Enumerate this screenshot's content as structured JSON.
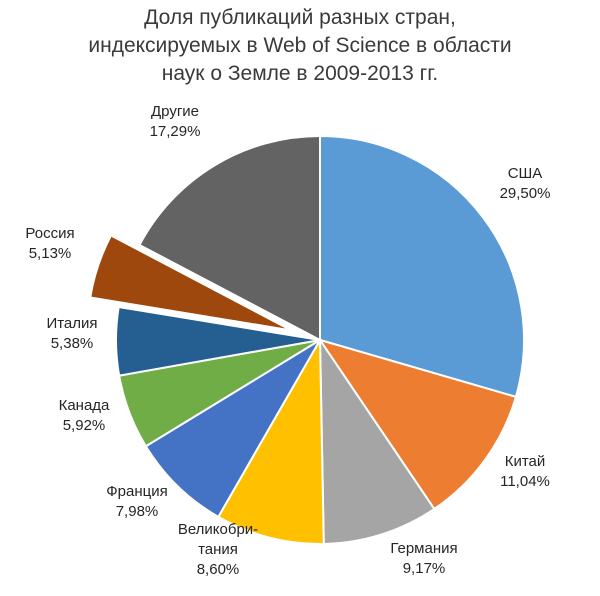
{
  "chart_data": {
    "type": "pie",
    "title_lines": [
      "Доля публикаций разных стран,",
      "индексируемых в Web of Science в области",
      "наук о Земле в 2009-2013 гг."
    ],
    "start_angle_deg": 0,
    "direction": "clockwise",
    "exploded": "Россия",
    "slices": [
      {
        "label": "США",
        "value": 29.5,
        "display": "29,50%",
        "color": "#5b9bd5"
      },
      {
        "label": "Китай",
        "value": 11.04,
        "display": "11,04%",
        "color": "#ed7d31"
      },
      {
        "label": "Германия",
        "value": 9.17,
        "display": "9,17%",
        "color": "#a5a5a5"
      },
      {
        "label": "Великобри-тания",
        "label_lines": [
          "Великобри-",
          "тания"
        ],
        "value": 8.6,
        "display": "8,60%",
        "color": "#ffc000"
      },
      {
        "label": "Франция",
        "value": 7.98,
        "display": "7,98%",
        "color": "#4472c4"
      },
      {
        "label": "Канада",
        "value": 5.92,
        "display": "5,92%",
        "color": "#70ad47"
      },
      {
        "label": "Италия",
        "value": 5.38,
        "display": "5,38%",
        "color": "#255e91"
      },
      {
        "label": "Россия",
        "value": 5.13,
        "display": "5,13%",
        "color": "#9e480e"
      },
      {
        "label": "Другие",
        "value": 17.29,
        "display": "17,29%",
        "color": "#636363"
      }
    ]
  }
}
